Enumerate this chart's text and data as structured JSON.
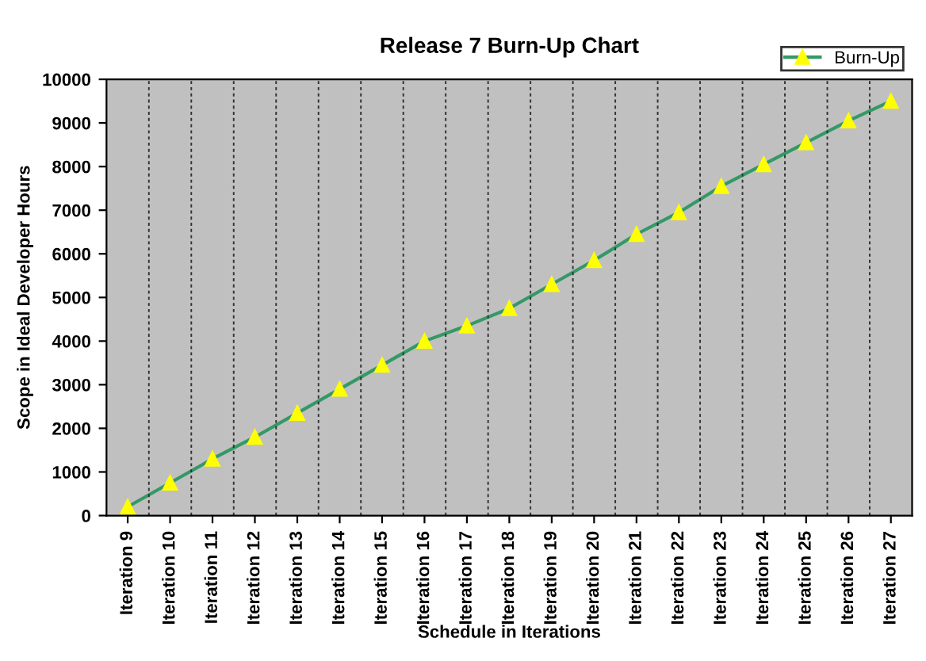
{
  "chart_data": {
    "type": "line",
    "title": "Release 7 Burn-Up Chart",
    "xlabel": "Schedule in Iterations",
    "ylabel": "Scope in Ideal Developer Hours",
    "categories": [
      "Iteration 9",
      "Iteration 10",
      "Iteration 11",
      "Iteration 12",
      "Iteration 13",
      "Iteration 14",
      "Iteration 15",
      "Iteration 16",
      "Iteration 17",
      "Iteration 18",
      "Iteration 19",
      "Iteration 20",
      "Iteration 21",
      "Iteration 22",
      "Iteration 23",
      "Iteration 24",
      "Iteration 25",
      "Iteration 26",
      "Iteration 27"
    ],
    "series": [
      {
        "name": "Burn-Up",
        "color": "#339966",
        "values": [
          200,
          750,
          1300,
          1800,
          2350,
          2900,
          3450,
          4000,
          4350,
          4750,
          5300,
          5850,
          6450,
          6950,
          7550,
          8050,
          8550,
          9050,
          9500
        ]
      }
    ],
    "ylim": [
      0,
      10000
    ],
    "yticks": [
      0,
      1000,
      2000,
      3000,
      4000,
      5000,
      6000,
      7000,
      8000,
      9000,
      10000
    ],
    "grid": "x",
    "legend": "top right",
    "marker": "triangle",
    "line_style": "solid"
  }
}
